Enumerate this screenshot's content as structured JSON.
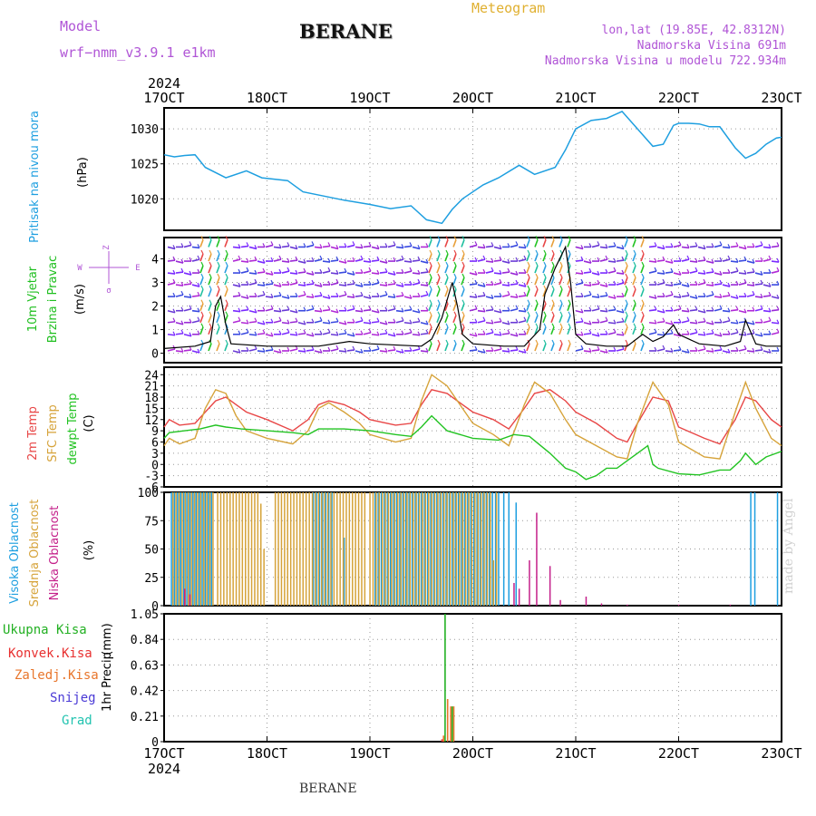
{
  "header": {
    "model_label": "Model",
    "model_name": "wrf−nmm_v3.9.1  e1km",
    "station": "BERANE",
    "meteogram": "Meteogram",
    "lonlat": "lon,lat (19.85E, 42.8312N)",
    "altitude": "Nadmorska Visina 691m",
    "model_altitude": "Nadmorska Visina u modelu 722.934m",
    "watermark": "made by Angel",
    "footer_station": "BERANE"
  },
  "colors": {
    "pressure": "#1e9fe0",
    "wind_title": "#1fbf1f",
    "temp2m": "#e84646",
    "sfc": "#d6a33a",
    "dewpt": "#22c322",
    "high_cloud": "#1e9fe0",
    "mid_cloud": "#d6a33a",
    "low_cloud": "#c4208a",
    "total_precip": "#22b022",
    "conv_precip": "#e83030",
    "frozen_precip": "#e8762c",
    "snow": "#4a3ad6",
    "graupel": "#22c3b0",
    "header_purple": "#b055d6",
    "header_gold": "#e0b030"
  },
  "chart_data": [
    {
      "type": "line",
      "name": "pressure",
      "ylabel_parts": [
        "Pritisak na nivou mora",
        "(hPa)"
      ],
      "ylim": [
        1015.5,
        1033
      ],
      "yticks": [
        1020,
        1025,
        1030
      ],
      "x_ticks": [
        "17OCT",
        "18OCT",
        "19OCT",
        "20OCT",
        "21OCT",
        "22OCT",
        "23OCT"
      ],
      "x_year": "2024",
      "x_start": 0,
      "x_end": 6,
      "series": [
        {
          "key": "pressure",
          "x": [
            0,
            0.1,
            0.2,
            0.3,
            0.4,
            0.6,
            0.8,
            0.95,
            1.2,
            1.35,
            1.55,
            1.75,
            2.0,
            2.2,
            2.4,
            2.55,
            2.7,
            2.8,
            2.9,
            3.1,
            3.25,
            3.45,
            3.6,
            3.8,
            3.9,
            4.0,
            4.15,
            4.3,
            4.45,
            4.6,
            4.75,
            4.85,
            4.95,
            5.0,
            5.1,
            5.2,
            5.3,
            5.4,
            5.55,
            5.65,
            5.75,
            5.85,
            5.95,
            6.0
          ],
          "values": [
            1026.3,
            1026,
            1026.2,
            1026.3,
            1024.5,
            1023,
            1024,
            1023,
            1022.6,
            1021,
            1020.4,
            1019.8,
            1019.2,
            1018.6,
            1019,
            1017,
            1016.5,
            1018.5,
            1020,
            1022,
            1023,
            1024.8,
            1023.5,
            1024.5,
            1027,
            1030,
            1031.2,
            1031.5,
            1032.5,
            1030,
            1027.5,
            1027.8,
            1030.5,
            1030.8,
            1030.8,
            1030.7,
            1030.3,
            1030.3,
            1027.3,
            1025.8,
            1026.5,
            1027.8,
            1028.7,
            1028.8
          ]
        }
      ]
    },
    {
      "type": "line",
      "name": "wind",
      "ylabel_parts": [
        "10m Vjetar",
        "Brzina i Pravac",
        "(m/s)"
      ],
      "compass": {
        "n": "Z",
        "w": "W",
        "e": "E",
        "s": "σ"
      },
      "ylim": [
        -0.4,
        4.9
      ],
      "yticks": [
        0,
        1,
        2,
        3,
        4
      ],
      "x_start": 0,
      "x_end": 6,
      "series": [
        {
          "key": "speed",
          "x": [
            0,
            0.3,
            0.45,
            0.5,
            0.55,
            0.6,
            0.65,
            1.0,
            1.5,
            1.8,
            2.0,
            2.5,
            2.6,
            2.7,
            2.8,
            2.85,
            2.9,
            3.0,
            3.3,
            3.5,
            3.65,
            3.7,
            3.8,
            3.9,
            3.95,
            4.0,
            4.1,
            4.3,
            4.5,
            4.65,
            4.75,
            4.85,
            4.95,
            5.0,
            5.2,
            5.45,
            5.6,
            5.65,
            5.75,
            5.85,
            6.0
          ],
          "values": [
            0.2,
            0.3,
            0.5,
            2.0,
            2.4,
            1.2,
            0.4,
            0.3,
            0.3,
            0.5,
            0.4,
            0.3,
            0.6,
            1.5,
            3.0,
            2.0,
            0.8,
            0.4,
            0.3,
            0.3,
            1.0,
            2.5,
            3.6,
            4.5,
            3.0,
            0.8,
            0.4,
            0.3,
            0.3,
            0.8,
            0.5,
            0.7,
            1.2,
            0.8,
            0.4,
            0.3,
            0.5,
            1.4,
            0.4,
            0.3,
            0.3
          ]
        }
      ]
    },
    {
      "type": "line",
      "name": "temperature",
      "ylabel_parts": [
        "2m Temp",
        "SFC Temp",
        "dewpt Temp",
        "(C)"
      ],
      "ylim": [
        -6,
        26
      ],
      "yticks": [
        -6,
        -3,
        0,
        3,
        6,
        9,
        12,
        15,
        18,
        21,
        24
      ],
      "x_start": 0,
      "x_end": 6,
      "series": [
        {
          "key": "temp2m",
          "name": "2m Temp",
          "x": [
            0,
            0.05,
            0.15,
            0.3,
            0.4,
            0.5,
            0.6,
            0.7,
            0.8,
            1.0,
            1.25,
            1.4,
            1.5,
            1.6,
            1.75,
            1.9,
            2.0,
            2.25,
            2.4,
            2.5,
            2.6,
            2.75,
            2.9,
            3.0,
            3.2,
            3.35,
            3.5,
            3.6,
            3.75,
            3.9,
            4.0,
            4.2,
            4.4,
            4.5,
            4.6,
            4.75,
            4.9,
            5.0,
            5.25,
            5.4,
            5.55,
            5.65,
            5.75,
            5.9,
            6.0
          ],
          "values": [
            10,
            12,
            10.5,
            11,
            14,
            17,
            18,
            16,
            14,
            12,
            9,
            12,
            16,
            17,
            16,
            14,
            12,
            10.5,
            11,
            16,
            20,
            19,
            16,
            14,
            12,
            9.5,
            15,
            19,
            20,
            17,
            14,
            11,
            7,
            6,
            11,
            18,
            17,
            10,
            7,
            5.5,
            12,
            18,
            17,
            12,
            10
          ]
        },
        {
          "key": "sfc",
          "name": "SFC Temp",
          "x": [
            0,
            0.05,
            0.15,
            0.3,
            0.4,
            0.5,
            0.6,
            0.7,
            0.8,
            1.0,
            1.25,
            1.4,
            1.5,
            1.6,
            1.75,
            1.9,
            2.0,
            2.25,
            2.4,
            2.5,
            2.6,
            2.75,
            2.9,
            3.0,
            3.2,
            3.35,
            3.5,
            3.6,
            3.75,
            3.9,
            4.0,
            4.2,
            4.4,
            4.5,
            4.6,
            4.75,
            4.9,
            5.0,
            5.25,
            5.4,
            5.55,
            5.65,
            5.75,
            5.9,
            6.0
          ],
          "values": [
            5,
            7,
            5.5,
            7,
            15,
            20,
            19,
            13,
            9,
            7,
            5.5,
            9,
            15,
            16.5,
            14,
            11,
            8,
            6,
            7,
            17,
            24,
            21,
            15,
            11,
            8,
            5,
            16,
            22,
            19,
            12,
            8,
            5,
            2,
            1.5,
            11,
            22,
            16,
            6,
            2,
            1.5,
            14,
            22,
            15,
            7,
            5
          ]
        },
        {
          "key": "dewpt",
          "name": "dewpt Temp",
          "x": [
            0,
            0.05,
            0.2,
            0.35,
            0.5,
            0.6,
            0.75,
            1.0,
            1.25,
            1.4,
            1.5,
            1.75,
            2.0,
            2.25,
            2.4,
            2.5,
            2.6,
            2.75,
            3.0,
            3.25,
            3.4,
            3.55,
            3.75,
            3.9,
            4.0,
            4.1,
            4.2,
            4.3,
            4.4,
            4.6,
            4.7,
            4.75,
            4.8,
            5.0,
            5.2,
            5.4,
            5.5,
            5.6,
            5.65,
            5.75,
            5.85,
            5.95,
            6.0
          ],
          "values": [
            7,
            8.5,
            9,
            9.5,
            10.5,
            10,
            9.5,
            9,
            8.5,
            8,
            9.5,
            9.5,
            9,
            8,
            7.5,
            10,
            13,
            9,
            7,
            6.5,
            8,
            7.5,
            3,
            -1,
            -2,
            -4,
            -3,
            -1,
            -1,
            3,
            5,
            0,
            -1,
            -2.5,
            -2.8,
            -1.5,
            -1.5,
            1,
            3,
            0,
            2,
            3,
            3.5
          ]
        }
      ]
    },
    {
      "type": "bar",
      "name": "cloud",
      "ylabel_parts": [
        "Visoka Oblacnost",
        "Srednja Oblacnost",
        "Niska Oblacnost",
        "(%)"
      ],
      "ylim": [
        0,
        100
      ],
      "yticks": [
        0,
        25,
        50,
        75,
        100
      ],
      "x_start": 0,
      "x_end": 6,
      "bar_width": 0.012,
      "series": [
        {
          "key": "high_cloud",
          "name": "Visoka Oblacnost",
          "x": [
            0.07,
            0.1,
            0.13,
            0.16,
            0.19,
            0.22,
            0.25,
            0.28,
            0.31,
            0.34,
            0.37,
            0.4,
            0.43,
            0.46,
            1.45,
            1.48,
            1.51,
            1.54,
            1.57,
            1.6,
            1.63,
            1.75,
            2.05,
            2.08,
            2.11,
            2.14,
            2.17,
            2.2,
            2.23,
            2.26,
            2.29,
            2.32,
            2.35,
            2.38,
            2.41,
            2.44,
            2.47,
            2.5,
            2.53,
            2.56,
            2.59,
            2.62,
            2.65,
            2.68,
            2.71,
            2.74,
            2.77,
            2.8,
            2.83,
            2.86,
            2.89,
            2.92,
            2.95,
            2.98,
            3.01,
            3.04,
            3.07,
            3.1,
            3.13,
            3.16,
            3.19,
            3.22,
            3.25,
            3.3,
            3.35,
            3.42,
            5.7,
            5.74,
            5.96
          ],
          "values": [
            100,
            100,
            100,
            100,
            100,
            100,
            100,
            100,
            100,
            100,
            100,
            100,
            100,
            100,
            100,
            100,
            100,
            100,
            100,
            100,
            100,
            60,
            100,
            100,
            100,
            100,
            100,
            100,
            100,
            100,
            100,
            100,
            100,
            100,
            100,
            100,
            100,
            100,
            100,
            100,
            100,
            100,
            100,
            100,
            100,
            100,
            100,
            100,
            100,
            100,
            100,
            100,
            100,
            100,
            100,
            100,
            100,
            100,
            100,
            100,
            100,
            100,
            100,
            100,
            100,
            91,
            100,
            100,
            100
          ]
        },
        {
          "key": "mid_cloud",
          "name": "Srednja Oblacnost",
          "x": [
            0.085,
            0.115,
            0.145,
            0.175,
            0.205,
            0.235,
            0.265,
            0.295,
            0.325,
            0.355,
            0.385,
            0.415,
            0.445,
            0.475,
            0.52,
            0.55,
            0.58,
            0.61,
            0.64,
            0.67,
            0.7,
            0.73,
            0.76,
            0.79,
            0.82,
            0.85,
            0.88,
            0.91,
            0.94,
            0.97,
            1.08,
            1.11,
            1.14,
            1.17,
            1.2,
            1.23,
            1.26,
            1.29,
            1.32,
            1.35,
            1.38,
            1.41,
            1.44,
            1.47,
            1.5,
            1.53,
            1.56,
            1.59,
            1.62,
            1.65,
            1.68,
            1.71,
            1.74,
            1.77,
            1.8,
            1.83,
            1.86,
            1.89,
            1.92,
            1.95,
            2.0,
            2.03,
            2.06,
            2.09,
            2.12,
            2.15,
            2.18,
            2.21,
            2.24,
            2.27,
            2.3,
            2.33,
            2.36,
            2.39,
            2.42,
            2.45,
            2.48,
            2.51,
            2.54,
            2.57,
            2.6,
            2.63,
            2.66,
            2.69,
            2.72,
            2.75,
            2.78,
            2.81,
            2.84,
            2.87,
            2.9,
            2.93,
            2.96,
            2.99,
            3.02,
            3.05,
            3.08,
            3.11,
            3.14,
            3.17,
            3.2,
            3.23
          ],
          "values": [
            100,
            100,
            100,
            100,
            100,
            100,
            100,
            100,
            100,
            100,
            100,
            100,
            100,
            100,
            100,
            100,
            100,
            100,
            100,
            100,
            100,
            100,
            100,
            100,
            100,
            100,
            100,
            100,
            90,
            50,
            100,
            100,
            100,
            100,
            100,
            100,
            100,
            100,
            100,
            100,
            100,
            100,
            100,
            100,
            100,
            100,
            100,
            100,
            100,
            100,
            100,
            100,
            100,
            100,
            100,
            100,
            100,
            100,
            100,
            100,
            100,
            100,
            100,
            100,
            100,
            100,
            100,
            100,
            100,
            100,
            100,
            100,
            100,
            100,
            100,
            100,
            100,
            100,
            100,
            100,
            100,
            100,
            100,
            100,
            100,
            100,
            100,
            100,
            100,
            100,
            100,
            100,
            100,
            100,
            100,
            100,
            100,
            100,
            100,
            100,
            40,
            100
          ]
        },
        {
          "key": "low_cloud",
          "name": "Niska Oblacnost",
          "x": [
            0.2,
            0.25,
            3.4,
            3.45,
            3.55,
            3.62,
            3.75,
            3.85,
            4.1,
            4.25,
            4.5,
            5.0,
            5.5
          ],
          "values": [
            15,
            10,
            20,
            15,
            40,
            82,
            35,
            5,
            8,
            2,
            1,
            1,
            1
          ]
        }
      ]
    },
    {
      "type": "bar",
      "name": "precip",
      "ylabel_parts": [
        "1hr Precip",
        "(mm)"
      ],
      "legend": [
        "Ukupna Kisa",
        "Konvek.Kisa",
        "Zaledj.Kisa",
        "Snijeg",
        "Grad"
      ],
      "ylim": [
        0,
        1.05
      ],
      "yticks": [
        0,
        0.21,
        0.42,
        0.63,
        0.84,
        1.05
      ],
      "x_start": 0,
      "x_end": 6,
      "bar_width": 0.014,
      "series": [
        {
          "key": "total_precip",
          "name": "Ukupna Kisa",
          "x": [
            2.73,
            2.8
          ],
          "values": [
            1.05,
            0.29
          ]
        },
        {
          "key": "frozen_precip",
          "name": "Zaledj.Kisa",
          "x": [
            2.715,
            2.755,
            2.785,
            2.815
          ],
          "values": [
            0.05,
            0.35,
            0.29,
            0.29
          ]
        },
        {
          "key": "conv_precip",
          "name": "Konvek.Kisa",
          "x": [
            2.7
          ],
          "values": [
            0.02
          ]
        }
      ]
    }
  ]
}
